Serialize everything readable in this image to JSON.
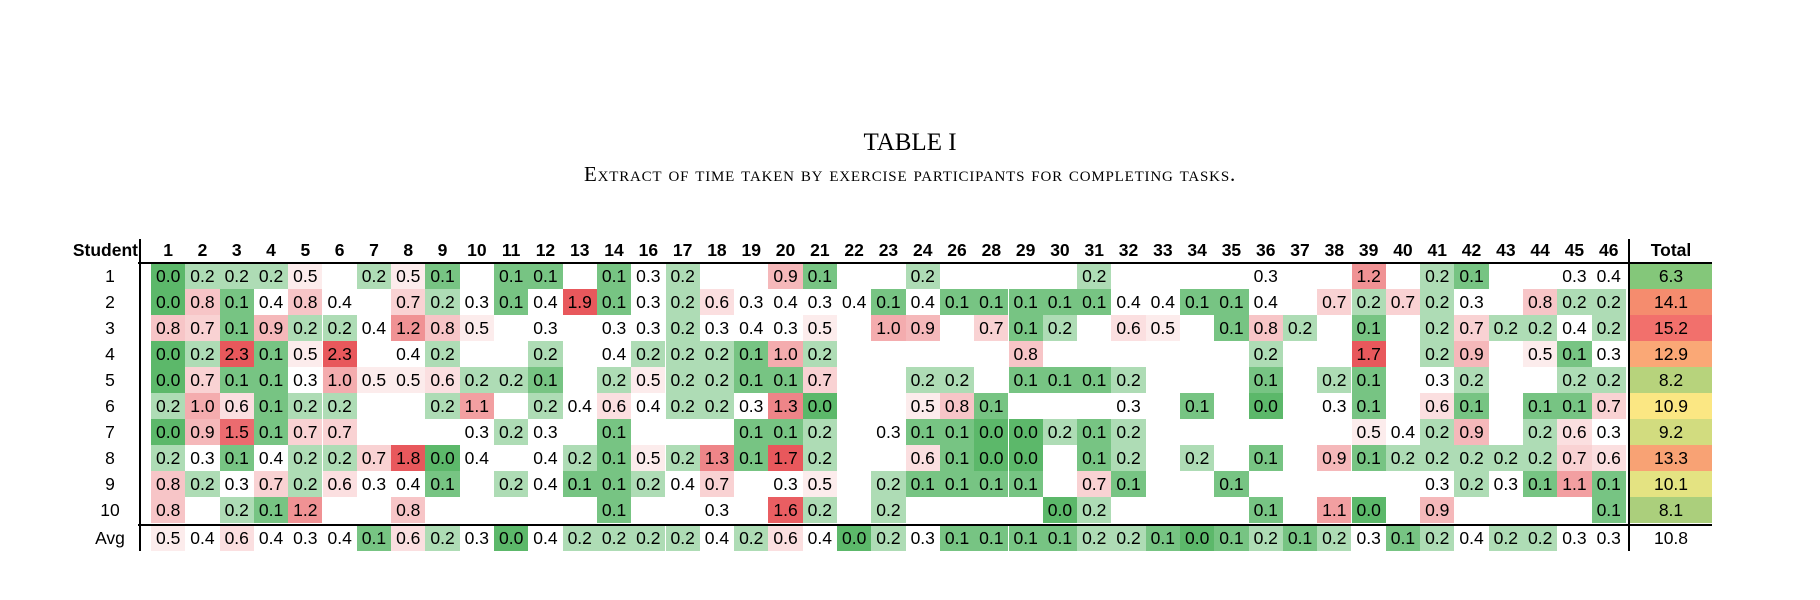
{
  "caption": {
    "label": "TABLE I",
    "title": "Extract of time taken by exercise participants for completing tasks."
  },
  "table": {
    "corner_label": "Student",
    "total_label": "Total",
    "avg_label": "Avg",
    "columns": [
      "1",
      "2",
      "3",
      "4",
      "5",
      "6",
      "7",
      "8",
      "9",
      "10",
      "11",
      "12",
      "13",
      "14",
      "16",
      "17",
      "18",
      "19",
      "20",
      "21",
      "22",
      "23",
      "24",
      "26",
      "28",
      "29",
      "30",
      "31",
      "32",
      "33",
      "34",
      "35",
      "36",
      "37",
      "38",
      "39",
      "40",
      "41",
      "42",
      "43",
      "44",
      "45",
      "46"
    ],
    "colors": {
      "green": "#5cb86a",
      "red": "#e8585c",
      "yellow": "#fbe884",
      "white": "#ffffff"
    },
    "rows": [
      {
        "label": "1",
        "cells": [
          "0.0",
          "0.2",
          "0.2",
          "0.2",
          "0.5",
          "",
          "0.2",
          "0.5",
          "0.1",
          "",
          "0.1",
          "0.1",
          "",
          "0.1",
          "0.3",
          "0.2",
          "",
          "",
          "0.9",
          "0.1",
          "",
          "",
          "0.2",
          "",
          "",
          "",
          "",
          "0.2",
          "",
          "",
          "",
          "",
          "0.3",
          "",
          "",
          "1.2",
          "",
          "0.2",
          "0.1",
          "",
          "",
          "0.3",
          "0.4"
        ],
        "total": "6.3",
        "total_color": "#84c77a"
      },
      {
        "label": "2",
        "cells": [
          "0.0",
          "0.8",
          "0.1",
          "0.4",
          "0.8",
          "0.4",
          "",
          "0.7",
          "0.2",
          "0.3",
          "0.1",
          "0.4",
          "1.9",
          "0.1",
          "0.3",
          "0.2",
          "0.6",
          "0.3",
          "0.4",
          "0.3",
          "0.4",
          "0.1",
          "0.4",
          "0.1",
          "0.1",
          "0.1",
          "0.1",
          "0.1",
          "0.4",
          "0.4",
          "0.1",
          "0.1",
          "0.4",
          "",
          "0.7",
          "0.2",
          "0.7",
          "0.2",
          "0.3",
          "",
          "0.8",
          "0.2",
          "0.2"
        ],
        "total": "14.1",
        "total_color": "#f58c6e"
      },
      {
        "label": "3",
        "cells": [
          "0.8",
          "0.7",
          "0.1",
          "0.9",
          "0.2",
          "0.2",
          "0.4",
          "1.2",
          "0.8",
          "0.5",
          "",
          "0.3",
          "",
          "0.3",
          "0.3",
          "0.2",
          "0.3",
          "0.4",
          "0.3",
          "0.5",
          "",
          "1.0",
          "0.9",
          "",
          "0.7",
          "0.1",
          "0.2",
          "",
          "0.6",
          "0.5",
          "",
          "0.1",
          "0.8",
          "0.2",
          "",
          "0.1",
          "",
          "0.2",
          "0.7",
          "0.2",
          "0.2",
          "0.4",
          "0.2"
        ],
        "total": "15.2",
        "total_color": "#f2706c"
      },
      {
        "label": "4",
        "cells": [
          "0.0",
          "0.2",
          "2.3",
          "0.1",
          "0.5",
          "2.3",
          "",
          "0.4",
          "0.2",
          "",
          "",
          "0.2",
          "",
          "0.4",
          "0.2",
          "0.2",
          "0.2",
          "0.1",
          "1.0",
          "0.2",
          "",
          "",
          "",
          "",
          "",
          "0.8",
          "",
          "",
          "",
          "",
          "",
          "",
          "0.2",
          "",
          "",
          "1.7",
          "",
          "0.2",
          "0.9",
          "",
          "0.5",
          "0.1",
          "0.3"
        ],
        "total": "12.9",
        "total_color": "#faa876"
      },
      {
        "label": "5",
        "cells": [
          "0.0",
          "0.7",
          "0.1",
          "0.1",
          "0.3",
          "1.0",
          "0.5",
          "0.5",
          "0.6",
          "0.2",
          "0.2",
          "0.1",
          "",
          "0.2",
          "0.5",
          "0.2",
          "0.2",
          "0.1",
          "0.1",
          "0.7",
          "",
          "",
          "0.2",
          "0.2",
          "",
          "0.1",
          "0.1",
          "0.1",
          "0.2",
          "",
          "",
          "",
          "0.1",
          "",
          "0.2",
          "0.1",
          "",
          "0.3",
          "0.2",
          "",
          "",
          "0.2",
          "0.2"
        ],
        "total": "8.2",
        "total_color": "#b7d37c"
      },
      {
        "label": "6",
        "cells": [
          "0.2",
          "1.0",
          "0.6",
          "0.1",
          "0.2",
          "0.2",
          "",
          "",
          "0.2",
          "1.1",
          "",
          "0.2",
          "0.4",
          "0.6",
          "0.4",
          "0.2",
          "0.2",
          "0.3",
          "1.3",
          "0.0",
          "",
          "",
          "0.5",
          "0.8",
          "0.1",
          "",
          "",
          "",
          "0.3",
          "",
          "0.1",
          "",
          "0.0",
          "",
          "0.3",
          "0.1",
          "",
          "0.6",
          "0.1",
          "",
          "0.1",
          "0.1",
          "0.7"
        ],
        "total": "10.9",
        "total_color": "#fbe783"
      },
      {
        "label": "7",
        "cells": [
          "0.0",
          "0.9",
          "1.5",
          "0.1",
          "0.7",
          "0.7",
          "",
          "",
          "",
          "0.3",
          "0.2",
          "0.3",
          "",
          "0.1",
          "",
          "",
          "",
          "0.1",
          "0.1",
          "0.2",
          "",
          "0.3",
          "0.1",
          "0.1",
          "0.0",
          "0.0",
          "0.2",
          "0.1",
          "0.2",
          "",
          "",
          "",
          "",
          "",
          "",
          "0.5",
          "0.4",
          "0.2",
          "0.9",
          "",
          "0.2",
          "0.6",
          "0.3"
        ],
        "total": "9.2",
        "total_color": "#d2dc7f"
      },
      {
        "label": "8",
        "cells": [
          "0.2",
          "0.3",
          "0.1",
          "0.4",
          "0.2",
          "0.2",
          "0.7",
          "1.8",
          "0.0",
          "0.4",
          "",
          "0.4",
          "0.2",
          "0.1",
          "0.5",
          "0.2",
          "1.3",
          "0.1",
          "1.7",
          "0.2",
          "",
          "",
          "0.6",
          "0.1",
          "0.0",
          "0.0",
          "",
          "0.1",
          "0.2",
          "",
          "0.2",
          "",
          "0.1",
          "",
          "0.9",
          "0.1",
          "0.2",
          "0.2",
          "0.2",
          "0.2",
          "0.2",
          "0.7",
          "0.6"
        ],
        "total": "13.3",
        "total_color": "#f8a274"
      },
      {
        "label": "9",
        "cells": [
          "0.8",
          "0.2",
          "0.3",
          "0.7",
          "0.2",
          "0.6",
          "0.3",
          "0.4",
          "0.1",
          "",
          "0.2",
          "0.4",
          "0.1",
          "0.1",
          "0.2",
          "0.4",
          "0.7",
          "",
          "0.3",
          "0.5",
          "",
          "0.2",
          "0.1",
          "0.1",
          "0.1",
          "0.1",
          "",
          "0.7",
          "0.1",
          "",
          "",
          "0.1",
          "",
          "",
          "",
          "",
          "",
          "0.3",
          "0.2",
          "0.3",
          "0.1",
          "1.1",
          "0.1"
        ],
        "total": "10.1",
        "total_color": "#e4e382"
      },
      {
        "label": "10",
        "cells": [
          "0.8",
          "",
          "0.2",
          "0.1",
          "1.2",
          "",
          "",
          "0.8",
          "",
          "",
          "",
          "",
          "",
          "0.1",
          "",
          "",
          "0.3",
          "",
          "1.6",
          "0.2",
          "",
          "0.2",
          "",
          "",
          "",
          "",
          "0.0",
          "0.2",
          "",
          "",
          "",
          "",
          "0.1",
          "",
          "1.1",
          "0.0",
          "",
          "0.9",
          "",
          "",
          "",
          "",
          "0.1"
        ],
        "total": "8.1",
        "total_color": "#abcf7c"
      }
    ],
    "avg": {
      "cells": [
        "0.5",
        "0.4",
        "0.6",
        "0.4",
        "0.3",
        "0.4",
        "0.1",
        "0.6",
        "0.2",
        "0.3",
        "0.0",
        "0.4",
        "0.2",
        "0.2",
        "0.2",
        "0.2",
        "0.4",
        "0.2",
        "0.6",
        "0.4",
        "0.0",
        "0.2",
        "0.3",
        "0.1",
        "0.1",
        "0.1",
        "0.1",
        "0.2",
        "0.2",
        "0.1",
        "0.0",
        "0.1",
        "0.2",
        "0.1",
        "0.2",
        "0.3",
        "0.1",
        "0.2",
        "0.4",
        "0.2",
        "0.2",
        "0.3",
        "0.3"
      ],
      "total": "10.8"
    }
  }
}
